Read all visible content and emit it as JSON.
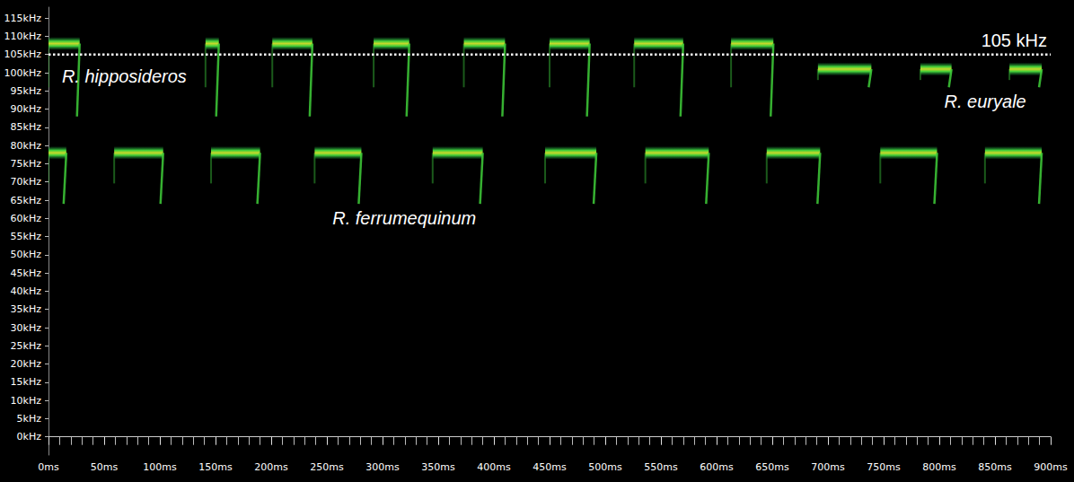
{
  "chart_data": {
    "type": "spectrogram",
    "xlim": [
      0,
      900
    ],
    "ylim": [
      -5,
      118
    ],
    "xticks": [
      {
        "value": 0,
        "label": "0ms"
      },
      {
        "value": 50,
        "label": "50ms"
      },
      {
        "value": 100,
        "label": "100ms"
      },
      {
        "value": 150,
        "label": "150ms"
      },
      {
        "value": 200,
        "label": "200ms"
      },
      {
        "value": 250,
        "label": "250ms"
      },
      {
        "value": 300,
        "label": "300ms"
      },
      {
        "value": 350,
        "label": "350ms"
      },
      {
        "value": 400,
        "label": "400ms"
      },
      {
        "value": 450,
        "label": "450ms"
      },
      {
        "value": 500,
        "label": "500ms"
      },
      {
        "value": 550,
        "label": "550ms"
      },
      {
        "value": 600,
        "label": "600ms"
      },
      {
        "value": 650,
        "label": "650ms"
      },
      {
        "value": 700,
        "label": "700ms"
      },
      {
        "value": 750,
        "label": "750ms"
      },
      {
        "value": 800,
        "label": "800ms"
      },
      {
        "value": 850,
        "label": "850ms"
      },
      {
        "value": 900,
        "label": "900ms"
      }
    ],
    "yticks": [
      {
        "value": 0,
        "label": "0kHz"
      },
      {
        "value": 5,
        "label": "5kHz"
      },
      {
        "value": 10,
        "label": "10kHz"
      },
      {
        "value": 15,
        "label": "15kHz"
      },
      {
        "value": 20,
        "label": "20kHz"
      },
      {
        "value": 25,
        "label": "25kHz"
      },
      {
        "value": 30,
        "label": "30kHz"
      },
      {
        "value": 35,
        "label": "35kHz"
      },
      {
        "value": 40,
        "label": "40kHz"
      },
      {
        "value": 45,
        "label": "45kHz"
      },
      {
        "value": 50,
        "label": "50kHz"
      },
      {
        "value": 55,
        "label": "55kHz"
      },
      {
        "value": 60,
        "label": "60kHz"
      },
      {
        "value": 65,
        "label": "65kHz"
      },
      {
        "value": 70,
        "label": "70kHz"
      },
      {
        "value": 75,
        "label": "75kHz"
      },
      {
        "value": 80,
        "label": "80kHz"
      },
      {
        "value": 85,
        "label": "85kHz"
      },
      {
        "value": 90,
        "label": "90kHz"
      },
      {
        "value": 95,
        "label": "95kHz"
      },
      {
        "value": 100,
        "label": "100kHz"
      },
      {
        "value": 105,
        "label": "105kHz"
      },
      {
        "value": 110,
        "label": "110kHz"
      },
      {
        "value": 115,
        "label": "115kHz"
      }
    ],
    "grid": false,
    "series": [
      {
        "name": "R. hipposideros",
        "color": "#3fcf3a",
        "frequency": 108,
        "fm_low": 88,
        "calls": [
          [
            0,
            28
          ],
          [
            141,
            153
          ],
          [
            201,
            237
          ],
          [
            292,
            324
          ],
          [
            373,
            410
          ],
          [
            450,
            486
          ],
          [
            526,
            570
          ],
          [
            613,
            651
          ]
        ]
      },
      {
        "name": "R. euryale",
        "color": "#3fcf3a",
        "frequency": 101,
        "fm_low": 96,
        "calls": [
          [
            691,
            739
          ],
          [
            783,
            811
          ],
          [
            863,
            892
          ]
        ]
      },
      {
        "name": "R. ferrumequinum",
        "color": "#3fcf3a",
        "frequency": 78,
        "fm_low": 64,
        "calls": [
          [
            0,
            16
          ],
          [
            59,
            103
          ],
          [
            146,
            190
          ],
          [
            239,
            281
          ],
          [
            345,
            390
          ],
          [
            446,
            492
          ],
          [
            536,
            593
          ],
          [
            645,
            693
          ],
          [
            747,
            798
          ],
          [
            841,
            892
          ]
        ]
      }
    ],
    "annotations": [
      {
        "text": "105 kHz",
        "y": 105
      }
    ]
  }
}
